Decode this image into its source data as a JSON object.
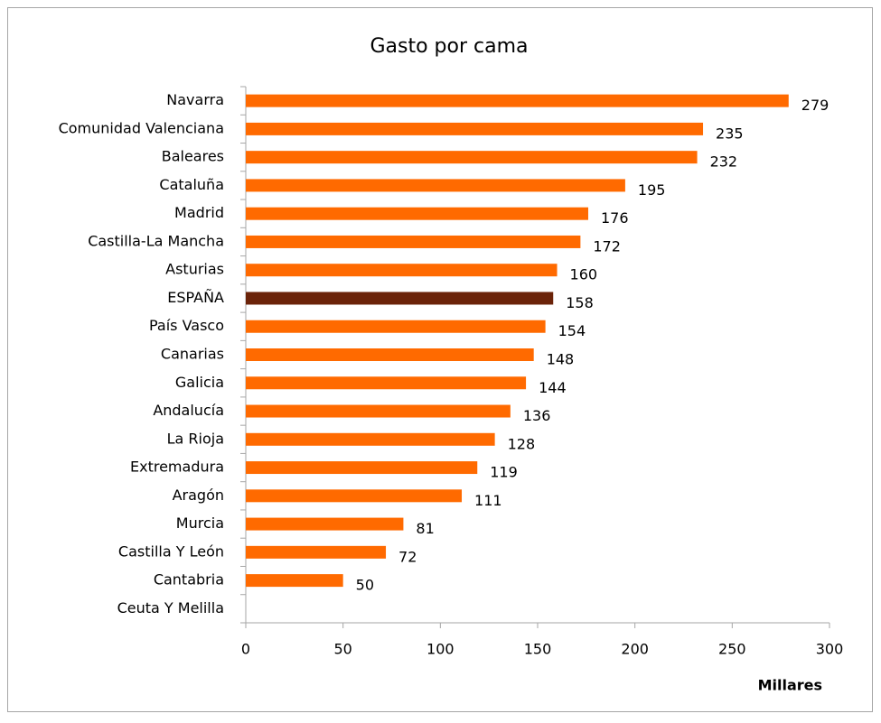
{
  "chart_data": {
    "type": "bar",
    "orientation": "horizontal",
    "title": "Gasto por cama",
    "categories": [
      "Navarra",
      "Comunidad Valenciana",
      "Baleares",
      "Cataluña",
      "Madrid",
      "Castilla-La Mancha",
      "Asturias",
      "ESPAÑA",
      "País Vasco",
      "Canarias",
      "Galicia",
      "Andalucía",
      "La Rioja",
      "Extremadura",
      "Aragón",
      "Murcia",
      "Castilla Y León",
      "Cantabria",
      "Ceuta Y Melilla"
    ],
    "values": [
      279,
      235,
      232,
      195,
      176,
      172,
      160,
      158,
      154,
      148,
      144,
      136,
      128,
      119,
      111,
      81,
      72,
      50,
      null
    ],
    "colors": [
      "#ff6a00",
      "#ff6a00",
      "#ff6a00",
      "#ff6a00",
      "#ff6a00",
      "#ff6a00",
      "#ff6a00",
      "#6b2309",
      "#ff6a00",
      "#ff6a00",
      "#ff6a00",
      "#ff6a00",
      "#ff6a00",
      "#ff6a00",
      "#ff6a00",
      "#ff6a00",
      "#ff6a00",
      "#ff6a00",
      "#ff6a00"
    ],
    "xlim": [
      0,
      300
    ],
    "xticks": [
      0,
      50,
      100,
      150,
      200,
      250,
      300
    ],
    "x_axis_label": "Millares",
    "grid": false
  }
}
